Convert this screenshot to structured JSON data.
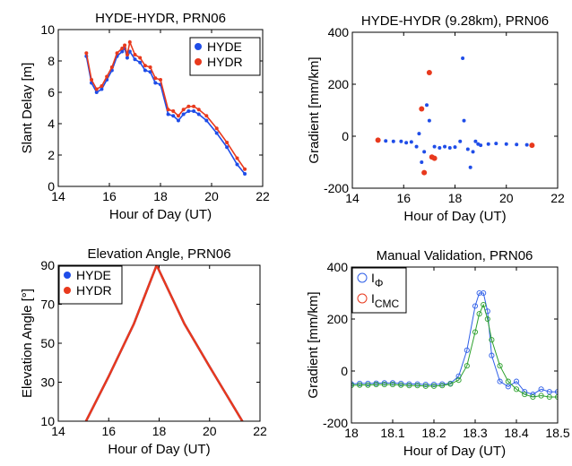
{
  "colors": {
    "HYDE": "#1f4de8",
    "HYDR": "#e8391d",
    "I_phi": "#2f5fe8",
    "I_CMC": "#2ca02c",
    "I_CMC_marker": "#e8391d"
  },
  "chart_data": [
    {
      "type": "scatter",
      "title": "HYDE-HYDR, PRN06",
      "xlabel": "Hour of Day (UT)",
      "ylabel": "Slant Delay [m]",
      "xlim": [
        14,
        22
      ],
      "ylim": [
        0,
        10
      ],
      "xticks": [
        "14",
        "16",
        "18",
        "20",
        "22"
      ],
      "yticks": [
        "0",
        "2",
        "4",
        "6",
        "8",
        "10"
      ],
      "legend": {
        "placement": "top-right",
        "entries": [
          "HYDE",
          "HYDR"
        ]
      },
      "series": [
        {
          "name": "HYDE",
          "color_key": "HYDE",
          "x": [
            15.1,
            15.3,
            15.5,
            15.7,
            15.9,
            16.1,
            16.3,
            16.5,
            16.6,
            16.7,
            16.8,
            17.0,
            17.2,
            17.4,
            17.6,
            17.8,
            18.0,
            18.3,
            18.5,
            18.7,
            18.9,
            19.1,
            19.3,
            19.5,
            19.8,
            20.2,
            20.6,
            21.0,
            21.3
          ],
          "y": [
            8.3,
            6.6,
            6.0,
            6.2,
            6.8,
            7.4,
            8.3,
            8.6,
            8.8,
            8.2,
            8.6,
            8.1,
            7.9,
            7.4,
            7.3,
            6.6,
            6.5,
            4.6,
            4.5,
            4.2,
            4.6,
            4.8,
            4.8,
            4.6,
            4.2,
            3.4,
            2.5,
            1.4,
            0.8
          ]
        },
        {
          "name": "HYDR",
          "color_key": "HYDR",
          "x": [
            15.1,
            15.3,
            15.5,
            15.7,
            15.9,
            16.1,
            16.3,
            16.5,
            16.6,
            16.7,
            16.8,
            17.0,
            17.2,
            17.4,
            17.6,
            17.8,
            18.0,
            18.3,
            18.5,
            18.7,
            18.9,
            19.1,
            19.3,
            19.5,
            19.8,
            20.2,
            20.6,
            21.0,
            21.3
          ],
          "y": [
            8.5,
            6.8,
            6.2,
            6.4,
            7.0,
            7.6,
            8.5,
            8.8,
            9.0,
            8.4,
            9.2,
            8.4,
            8.2,
            7.7,
            7.6,
            6.9,
            6.8,
            4.9,
            4.8,
            4.5,
            4.9,
            5.1,
            5.1,
            4.9,
            4.5,
            3.7,
            2.8,
            1.8,
            1.1
          ]
        }
      ]
    },
    {
      "type": "scatter",
      "title": "HYDE-HYDR (9.28km), PRN06",
      "xlabel": "Hour of Day (UT)",
      "ylabel": "Gradient [mm/km]",
      "xlim": [
        14,
        22
      ],
      "ylim": [
        -200,
        400
      ],
      "xticks": [
        "14",
        "16",
        "18",
        "20",
        "22"
      ],
      "yticks": [
        "-200",
        "0",
        "200",
        "400"
      ],
      "series": [
        {
          "name": "",
          "color_key": "HYDE",
          "x": [
            15.0,
            15.3,
            15.6,
            15.9,
            16.1,
            16.3,
            16.5,
            16.6,
            16.7,
            16.8,
            16.9,
            17.0,
            17.2,
            17.4,
            17.6,
            17.8,
            18.0,
            18.2,
            18.3,
            18.35,
            18.5,
            18.6,
            18.7,
            18.8,
            18.9,
            19.0,
            19.3,
            19.6,
            20.0,
            20.4,
            20.8,
            21.0
          ],
          "y": [
            -15,
            -18,
            -20,
            -20,
            -25,
            -22,
            -40,
            10,
            -100,
            -60,
            120,
            60,
            -40,
            -45,
            -40,
            -45,
            -42,
            -20,
            300,
            60,
            -50,
            -120,
            -60,
            -20,
            -30,
            -35,
            -30,
            -28,
            -30,
            -32,
            -33,
            -34
          ]
        },
        {
          "name": "",
          "color_key": "HYDR",
          "x": [
            16.7,
            16.8,
            17.0,
            17.1,
            17.2,
            15.0,
            21.0
          ],
          "y": [
            105,
            -140,
            245,
            -80,
            -85,
            -15,
            -35
          ]
        }
      ]
    },
    {
      "type": "line",
      "title": "Elevation Angle, PRN06",
      "xlabel": "Hour of Day (UT)",
      "ylabel": "Elevation Angle [°]",
      "xlim": [
        14,
        22
      ],
      "ylim": [
        10,
        90
      ],
      "xticks": [
        "14",
        "16",
        "18",
        "20",
        "22"
      ],
      "yticks": [
        "10",
        "30",
        "50",
        "70",
        "90"
      ],
      "legend": {
        "placement": "top-left",
        "entries": [
          "HYDE",
          "HYDR"
        ]
      },
      "series": [
        {
          "name": "HYDE",
          "color_key": "HYDE",
          "x": [
            15.1,
            16.0,
            17.0,
            17.9,
            19.0,
            20.0,
            21.3
          ],
          "y": [
            10,
            33,
            60,
            90,
            60,
            38,
            10
          ]
        },
        {
          "name": "HYDR",
          "color_key": "HYDR",
          "x": [
            15.1,
            16.0,
            17.0,
            17.9,
            19.0,
            20.0,
            21.3
          ],
          "y": [
            10,
            33,
            60,
            90,
            60,
            38,
            10
          ]
        }
      ]
    },
    {
      "type": "line",
      "title": "Manual Validation, PRN06",
      "xlabel": "Hour of Day (UT)",
      "ylabel": "Gradient [mm/km]",
      "xlim": [
        18,
        18.5
      ],
      "ylim": [
        -200,
        400
      ],
      "xticks": [
        "18",
        "18.1",
        "18.2",
        "18.3",
        "18.4",
        "18.5"
      ],
      "yticks": [
        "-200",
        "0",
        "200",
        "400"
      ],
      "legend": {
        "placement": "top-left",
        "entries": [
          {
            "base": "I",
            "sub": "Φ"
          },
          {
            "base": "I",
            "sub": "CMC"
          }
        ]
      },
      "series": [
        {
          "name": "IΦ",
          "color_key": "I_phi",
          "x": [
            18.0,
            18.02,
            18.04,
            18.06,
            18.08,
            18.1,
            18.12,
            18.14,
            18.16,
            18.18,
            18.2,
            18.22,
            18.24,
            18.26,
            18.28,
            18.3,
            18.31,
            18.32,
            18.33,
            18.34,
            18.36,
            18.38,
            18.4,
            18.42,
            18.44,
            18.46,
            18.48,
            18.5
          ],
          "y": [
            -50,
            -48,
            -48,
            -47,
            -46,
            -46,
            -48,
            -50,
            -50,
            -52,
            -52,
            -50,
            -48,
            -20,
            80,
            250,
            300,
            300,
            230,
            60,
            -40,
            -60,
            -40,
            -80,
            -90,
            -70,
            -80,
            -80
          ]
        },
        {
          "name": "ICMC",
          "color_key": "I_CMC",
          "x": [
            18.0,
            18.02,
            18.04,
            18.06,
            18.08,
            18.1,
            18.12,
            18.14,
            18.16,
            18.18,
            18.2,
            18.22,
            18.24,
            18.26,
            18.28,
            18.3,
            18.31,
            18.32,
            18.33,
            18.34,
            18.36,
            18.38,
            18.4,
            18.42,
            18.44,
            18.46,
            18.48,
            18.5
          ],
          "y": [
            -55,
            -54,
            -54,
            -52,
            -52,
            -52,
            -54,
            -56,
            -56,
            -58,
            -58,
            -56,
            -50,
            -35,
            20,
            150,
            220,
            255,
            200,
            120,
            20,
            -40,
            -70,
            -90,
            -100,
            -95,
            -100,
            -100
          ]
        }
      ]
    }
  ]
}
